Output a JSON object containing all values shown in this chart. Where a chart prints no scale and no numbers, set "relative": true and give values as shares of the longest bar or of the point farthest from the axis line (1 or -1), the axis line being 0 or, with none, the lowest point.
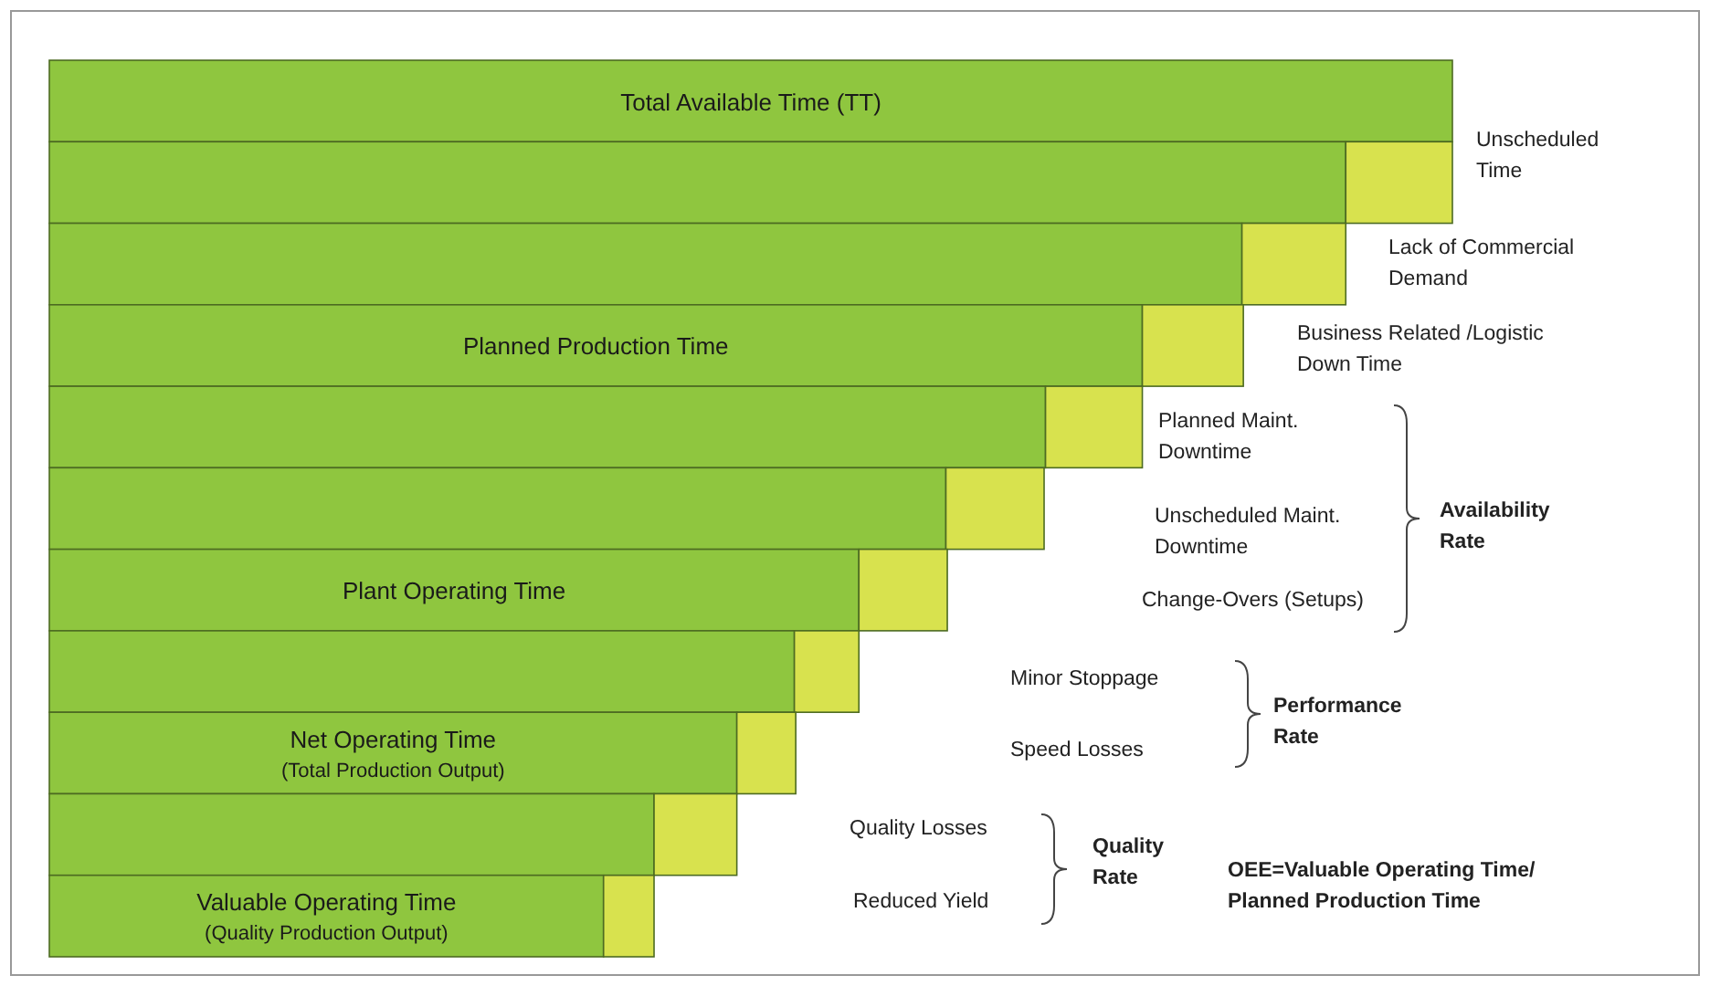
{
  "chart_data": {
    "type": "bar",
    "orientation": "horizontal",
    "stacked": true,
    "relative": true,
    "categories": [
      "Total Available Time (TT)",
      null,
      null,
      "Planned Production Time",
      null,
      null,
      "Plant Operating Time",
      null,
      "Net Operating Time\n(Total Production Output)",
      null,
      "Valuable Operating Time\n(Quality Production Output)"
    ],
    "series": [
      {
        "color": "#8fc63f",
        "values": [
          1,
          0.924,
          0.85,
          0.779,
          0.71,
          0.639,
          0.577,
          0.531,
          0.49,
          0.431,
          0.395
        ]
      },
      {
        "color": "#d8e24e",
        "values": [
          0,
          0.076,
          0.074,
          0.072,
          0.069,
          0.07,
          0.063,
          0.046,
          0.042,
          0.059,
          0.036
        ]
      }
    ],
    "annotations": [
      "Unscheduled Time",
      "Lack of Commercial Demand",
      "Business Related /Logistic Down Time",
      "Planned Maint. Downtime",
      "Unscheduled Maint. Downtime",
      "Change-Overs (Setups)",
      "Availability Rate",
      "Minor Stoppage",
      "Speed Losses",
      "Performance Rate",
      "Quality Losses",
      "Reduced Yield",
      "Quality Rate",
      "OEE=Valuable Operating Time/ Planned Production Time"
    ]
  }
}
